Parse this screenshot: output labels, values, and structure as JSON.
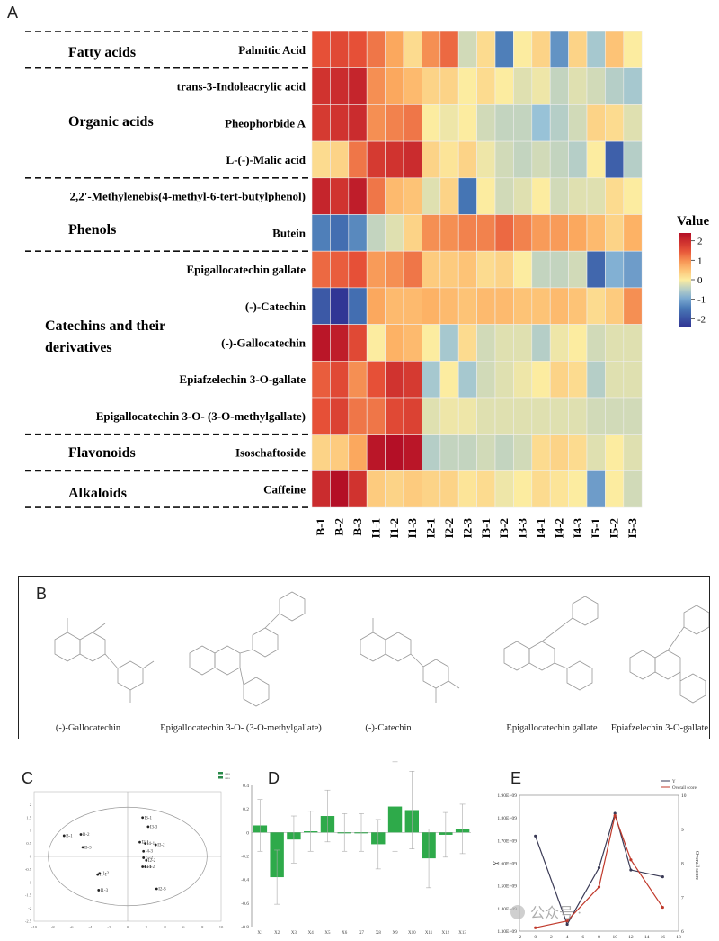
{
  "panel_labels": {
    "a": "A",
    "b": "B",
    "c": "C",
    "d": "D",
    "e": "E"
  },
  "chart_data": [
    {
      "type": "heatmap",
      "panel": "A",
      "legend_title": "Value",
      "legend_ticks": [
        "2",
        "1",
        "0",
        "-1",
        "-2"
      ],
      "value_range": [
        -2.4,
        2.4
      ],
      "columns": [
        "B-1",
        "B-2",
        "B-3",
        "I1-1",
        "I1-2",
        "I1-3",
        "I2-1",
        "I2-2",
        "I2-3",
        "I3-1",
        "I3-2",
        "I3-3",
        "I4-1",
        "I4-2",
        "I4-3",
        "I5-1",
        "I5-2",
        "I5-3"
      ],
      "rows": [
        "Palmitic Acid",
        "trans-3-Indoleacrylic acid",
        "Pheophorbide A",
        "L-(-)-Malic acid",
        "2,2'-Methylenebis(4-methyl-6-tert-butylphenol)",
        "Butein",
        "Epigallocatechin gallate",
        "(-)-Catechin",
        "(-)-Gallocatechin",
        "Epiafzelechin 3-O-gallate",
        "Epigallocatechin 3-O- (3-O-methylgallate)",
        "Isoschaftoside",
        "Caffeine"
      ],
      "groups": [
        {
          "name": "Fatty acids",
          "rows": [
            0
          ]
        },
        {
          "name": "Organic acids",
          "rows": [
            1,
            2,
            3
          ]
        },
        {
          "name": "Phenols",
          "rows": [
            4,
            5
          ]
        },
        {
          "name": "Catechins and their derivatives",
          "rows": [
            6,
            7,
            8,
            9,
            10
          ]
        },
        {
          "name": "Flavonoids",
          "rows": [
            11
          ]
        },
        {
          "name": "Alkaloids",
          "rows": [
            12
          ]
        }
      ],
      "values": [
        [
          1.5,
          1.6,
          1.5,
          1.2,
          0.8,
          0.2,
          1.0,
          1.3,
          -0.3,
          0.2,
          -1.4,
          0.0,
          0.3,
          -1.2,
          0.3,
          -0.6,
          0.5,
          0.0
        ],
        [
          1.9,
          2.0,
          2.1,
          1.0,
          0.8,
          0.6,
          0.3,
          0.3,
          0.0,
          0.2,
          0.0,
          -0.2,
          -0.1,
          -0.4,
          -0.2,
          -0.3,
          -0.5,
          -0.6
        ],
        [
          1.8,
          1.9,
          2.0,
          1.0,
          1.1,
          1.2,
          0.0,
          -0.1,
          0.0,
          -0.3,
          -0.4,
          -0.4,
          -0.7,
          -0.5,
          -0.3,
          0.3,
          0.2,
          -0.2
        ],
        [
          0.2,
          0.3,
          1.2,
          1.8,
          1.9,
          2.0,
          0.3,
          0.1,
          0.3,
          -0.1,
          -0.3,
          -0.4,
          -0.3,
          -0.4,
          -0.5,
          0.0,
          -1.8,
          -0.5
        ],
        [
          2.1,
          1.9,
          2.2,
          1.2,
          0.6,
          0.5,
          -0.2,
          0.3,
          -1.5,
          0.0,
          -0.3,
          -0.2,
          0.0,
          -0.3,
          -0.2,
          -0.2,
          0.2,
          0.0
        ],
        [
          -1.4,
          -1.6,
          -1.3,
          -0.4,
          -0.2,
          0.3,
          1.0,
          1.0,
          1.1,
          1.1,
          1.3,
          1.1,
          0.9,
          0.9,
          0.8,
          0.6,
          0.3,
          0.7
        ],
        [
          1.3,
          1.4,
          1.5,
          0.9,
          1.0,
          1.2,
          0.4,
          0.4,
          0.5,
          0.2,
          0.3,
          0.0,
          -0.4,
          -0.4,
          -0.3,
          -1.7,
          -0.9,
          -1.1
        ],
        [
          -1.9,
          -2.5,
          -1.6,
          0.8,
          0.6,
          0.6,
          0.7,
          0.6,
          0.5,
          0.6,
          0.6,
          0.5,
          0.5,
          0.6,
          0.5,
          0.2,
          0.4,
          1.0
        ],
        [
          2.3,
          2.2,
          1.6,
          0.0,
          0.7,
          0.6,
          0.0,
          -0.6,
          0.2,
          -0.3,
          -0.2,
          -0.2,
          -0.5,
          -0.1,
          0.0,
          -0.3,
          -0.2,
          -0.2
        ],
        [
          1.4,
          1.6,
          1.0,
          1.5,
          1.9,
          1.8,
          -0.6,
          0.0,
          -0.6,
          -0.3,
          -0.2,
          -0.1,
          0.0,
          0.3,
          0.2,
          -0.5,
          -0.2,
          -0.2
        ],
        [
          1.5,
          1.7,
          1.2,
          1.2,
          1.6,
          1.7,
          -0.2,
          -0.1,
          -0.1,
          -0.2,
          -0.2,
          -0.2,
          -0.2,
          -0.2,
          -0.2,
          -0.3,
          -0.3,
          -0.3
        ],
        [
          0.3,
          0.4,
          0.8,
          2.3,
          2.4,
          2.3,
          -0.5,
          -0.4,
          -0.4,
          -0.3,
          -0.4,
          -0.3,
          0.2,
          0.3,
          0.2,
          -0.2,
          0.0,
          -0.2
        ],
        [
          2.0,
          2.5,
          1.9,
          0.4,
          0.3,
          0.4,
          0.3,
          0.3,
          0.1,
          0.2,
          -0.1,
          0.0,
          0.2,
          0.1,
          0.0,
          -1.1,
          0.0,
          -0.3
        ]
      ]
    },
    {
      "type": "scatter",
      "panel": "C",
      "xlim": [
        -10,
        10
      ],
      "ylim": [
        -2.5,
        2.5
      ],
      "xticks": [
        "-10",
        "-8",
        "-6",
        "-4",
        "-2",
        "0",
        "2",
        "4",
        "6",
        "8",
        "10"
      ],
      "yticks": [
        "2",
        "1.5",
        "1",
        "0.5",
        "0",
        "-0.5",
        "-1",
        "-1.5",
        "-2",
        "-2.5"
      ],
      "legend": [
        "data",
        "data"
      ],
      "points": [
        {
          "label": "B-1",
          "x": -6.8,
          "y": 0.8
        },
        {
          "label": "B-2",
          "x": -5.0,
          "y": 0.85
        },
        {
          "label": "B-3",
          "x": -4.8,
          "y": 0.35
        },
        {
          "label": "I1-1",
          "x": -3.2,
          "y": -0.7
        },
        {
          "label": "I1-2",
          "x": -3.0,
          "y": -0.65
        },
        {
          "label": "I1-3",
          "x": -3.1,
          "y": -1.3
        },
        {
          "label": "I3-1",
          "x": 1.6,
          "y": 1.5
        },
        {
          "label": "I3-3",
          "x": 2.2,
          "y": 1.15
        },
        {
          "label": "I2-1",
          "x": 1.3,
          "y": 0.55
        },
        {
          "label": "I4-1",
          "x": 1.9,
          "y": 0.5
        },
        {
          "label": "I3-2",
          "x": 3.0,
          "y": 0.45
        },
        {
          "label": "I4-3",
          "x": 1.7,
          "y": 0.2
        },
        {
          "label": "I5-2",
          "x": 1.7,
          "y": -0.05
        },
        {
          "label": "I2-2",
          "x": 2.0,
          "y": -0.15
        },
        {
          "label": "I5-1",
          "x": 1.6,
          "y": -0.4
        },
        {
          "label": "I4-2",
          "x": 1.9,
          "y": -0.4
        },
        {
          "label": "I2-3",
          "x": 3.1,
          "y": -1.25
        }
      ]
    },
    {
      "type": "bar",
      "panel": "D",
      "categories": [
        "X1",
        "X2",
        "X3",
        "X4",
        "X5",
        "X6",
        "X7",
        "X8",
        "X9",
        "X10",
        "X11",
        "X12",
        "X13"
      ],
      "values": [
        0.06,
        -0.38,
        -0.06,
        0.01,
        0.14,
        0.0,
        0.0,
        -0.1,
        0.22,
        0.19,
        -0.22,
        -0.02,
        0.03
      ],
      "errors": [
        0.22,
        0.23,
        0.2,
        0.17,
        0.22,
        0.16,
        0.16,
        0.21,
        0.38,
        0.33,
        0.25,
        0.19,
        0.21
      ],
      "ylim": [
        -0.8,
        0.4
      ],
      "yticks": [
        "0.4",
        "0.2",
        "0",
        "-0.2",
        "-0.4",
        "-0.6",
        "-0.8"
      ],
      "color": "#2eaa4a"
    },
    {
      "type": "line",
      "panel": "E",
      "x": [
        0,
        4,
        8,
        10,
        12,
        16
      ],
      "xlim": [
        -2,
        18
      ],
      "xticks": [
        "-2",
        "0",
        "2",
        "4",
        "6",
        "8",
        "10",
        "12",
        "14",
        "16",
        "18"
      ],
      "ylabel": "Y",
      "ylim": [
        1300000000.0,
        1900000000.0
      ],
      "yticks": [
        "1.90E+09",
        "1.80E+09",
        "1.70E+09",
        "1.60E+09",
        "1.50E+09",
        "1.40E+09",
        "1.30E+09"
      ],
      "y2label": "Overall score",
      "y2lim": [
        6,
        10
      ],
      "y2ticks": [
        "10",
        "9",
        "8",
        "7",
        "6"
      ],
      "legend": [
        "Y",
        "Overall score"
      ],
      "series": [
        {
          "name": "Y",
          "axis": "left",
          "values": [
            1720000000.0,
            1330000000.0,
            1580000000.0,
            1820000000.0,
            1570000000.0,
            1540000000.0
          ],
          "color": "#3a3a55"
        },
        {
          "name": "Overall score",
          "axis": "right",
          "values": [
            6.1,
            6.3,
            7.3,
            9.4,
            8.1,
            6.7
          ],
          "color": "#c0392b"
        }
      ]
    }
  ],
  "molecules": [
    "(-)-Gallocatechin",
    "Epigallocatechin 3-O- (3-O-methylgallate)",
    "(-)-Catechin",
    "Epigallocatechin gallate",
    "Epiafzelechin 3-O-gallate"
  ],
  "watermark": "公众号 ·"
}
